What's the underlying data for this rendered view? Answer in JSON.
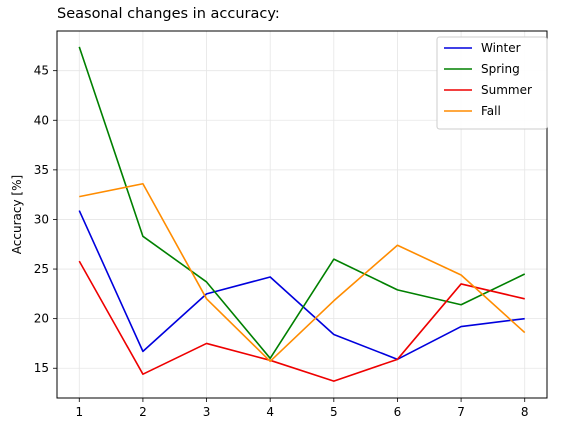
{
  "chart_data": {
    "type": "line",
    "title": "Seasonal changes in accuracy:",
    "xlabel": "",
    "ylabel": "Accuracy [%]",
    "x": [
      1,
      2,
      3,
      4,
      5,
      6,
      7,
      8
    ],
    "xlim": [
      0.65,
      8.35
    ],
    "ylim": [
      12.0,
      49.0
    ],
    "xticks": [
      "1",
      "2",
      "3",
      "4",
      "5",
      "6",
      "7",
      "8"
    ],
    "yticks": [
      15,
      20,
      25,
      30,
      35,
      40,
      45
    ],
    "grid": true,
    "legend_position": "top-right",
    "series": [
      {
        "name": "Winter",
        "color": "#0000dd",
        "values": [
          30.9,
          16.7,
          22.5,
          24.2,
          18.4,
          15.9,
          19.2,
          20.0
        ]
      },
      {
        "name": "Spring",
        "color": "#008000",
        "values": [
          47.4,
          28.3,
          23.7,
          16.0,
          26.0,
          22.9,
          21.4,
          24.5
        ]
      },
      {
        "name": "Summer",
        "color": "#ee0000",
        "values": [
          25.8,
          14.4,
          17.5,
          15.8,
          13.7,
          15.9,
          23.5,
          22.0
        ]
      },
      {
        "name": "Fall",
        "color": "#ff8c00",
        "values": [
          32.3,
          33.6,
          22.0,
          15.7,
          21.8,
          27.4,
          24.4,
          18.6
        ]
      }
    ]
  }
}
